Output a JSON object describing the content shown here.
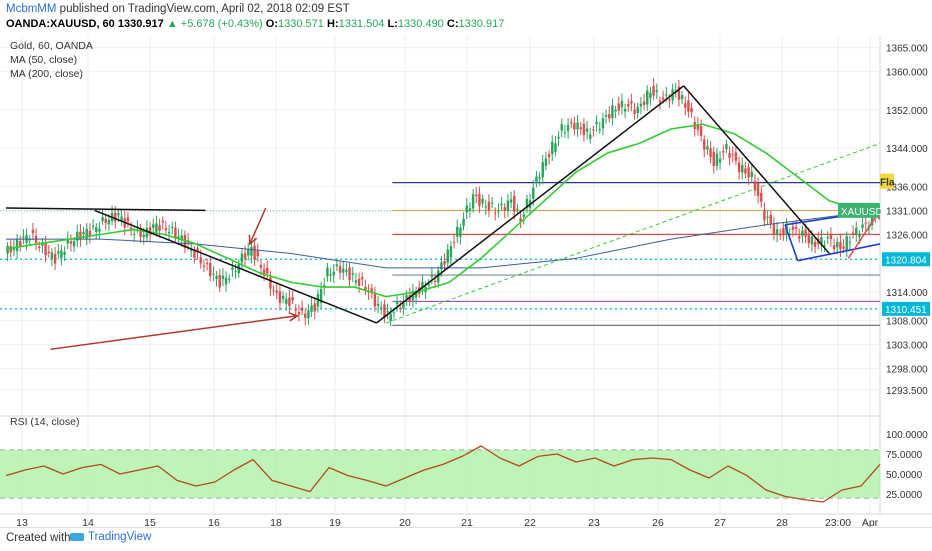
{
  "header": {
    "author": "McbmMM",
    "published_text": "published on TradingView.com, April 02, 2018 02:09 EST",
    "symbol": "OANDA:XAUUSD, 60",
    "last": "1330.917",
    "change": "+5.678 (+0.43%)",
    "open_label": "O:",
    "open": "1330.571",
    "high_label": "H:",
    "high": "1331.504",
    "low_label": "L:",
    "low": "1330.490",
    "close_label": "C:",
    "close": "1330.917"
  },
  "legend": {
    "title": "Gold, 60, OANDA",
    "ma50": "MA (50, close)",
    "ma200": "MA (200, close)",
    "rsi": "RSI (14, close)"
  },
  "footer": {
    "created_with": "Created with",
    "brand": "TradingView"
  },
  "colors": {
    "up": "#26a65b",
    "down": "#e04b4b",
    "ma50": "#33cc33",
    "ma200": "#3d5a99",
    "rsi": "#b5491a",
    "rsi_band": "#a8f0a0",
    "cyan_level": "#00b7d9"
  },
  "chart_data": [
    {
      "type": "candlestick",
      "title": "Gold, 60, OANDA",
      "symbol": "XAUUSD",
      "price_scale": {
        "ticks": [
          "1365.000",
          "1360.000",
          "1352.000",
          "1344.000",
          "1336.000",
          "1331.000",
          "1326.000",
          "1320.804",
          "1314.000",
          "1310.451",
          "1308.000",
          "1303.000",
          "1298.000",
          "1293.500"
        ],
        "tick_values": [
          1365,
          1360,
          1352,
          1344,
          1336,
          1331,
          1326,
          1320.804,
          1314,
          1310.451,
          1308,
          1303,
          1298,
          1293.5
        ],
        "highlighted": [
          {
            "label": "1320.804",
            "value": 1320.804
          },
          {
            "label": "1310.451",
            "value": 1310.451
          }
        ],
        "last_price_tag": {
          "label": "XAUUSD",
          "value": 1330.917
        },
        "flag_tag": "Fla"
      },
      "x_ticks": [
        "13",
        "14",
        "15",
        "16",
        "18",
        "19",
        "20",
        "21",
        "22",
        "23",
        "26",
        "27",
        "28",
        "23:00",
        "Apr"
      ],
      "price_path": [
        [
          0,
          1322
        ],
        [
          4,
          1324
        ],
        [
          8,
          1326
        ],
        [
          12,
          1323
        ],
        [
          16,
          1321
        ],
        [
          20,
          1324
        ],
        [
          24,
          1326
        ],
        [
          28,
          1327
        ],
        [
          32,
          1329
        ],
        [
          36,
          1330
        ],
        [
          40,
          1327
        ],
        [
          44,
          1326
        ],
        [
          48,
          1328
        ],
        [
          52,
          1327
        ],
        [
          56,
          1325
        ],
        [
          60,
          1322
        ],
        [
          64,
          1319
        ],
        [
          68,
          1316
        ],
        [
          72,
          1318
        ],
        [
          76,
          1322
        ],
        [
          78,
          1323
        ],
        [
          82,
          1318
        ],
        [
          86,
          1313
        ],
        [
          90,
          1312
        ],
        [
          94,
          1309
        ],
        [
          98,
          1311
        ],
        [
          102,
          1318
        ],
        [
          106,
          1319
        ],
        [
          110,
          1317
        ],
        [
          114,
          1315
        ],
        [
          118,
          1311
        ],
        [
          121,
          1309
        ],
        [
          124,
          1311
        ],
        [
          128,
          1313
        ],
        [
          132,
          1315
        ],
        [
          136,
          1317
        ],
        [
          140,
          1322
        ],
        [
          144,
          1328
        ],
        [
          148,
          1334
        ],
        [
          152,
          1332
        ],
        [
          156,
          1331
        ],
        [
          160,
          1333
        ],
        [
          163,
          1329
        ],
        [
          166,
          1334
        ],
        [
          169,
          1339
        ],
        [
          172,
          1343
        ],
        [
          176,
          1348
        ],
        [
          180,
          1349
        ],
        [
          184,
          1347
        ],
        [
          188,
          1349
        ],
        [
          192,
          1352
        ],
        [
          196,
          1353
        ],
        [
          200,
          1352
        ],
        [
          204,
          1356
        ],
        [
          208,
          1354
        ],
        [
          212,
          1356
        ],
        [
          216,
          1352
        ],
        [
          220,
          1346
        ],
        [
          224,
          1341
        ],
        [
          228,
          1344
        ],
        [
          232,
          1340
        ],
        [
          236,
          1338
        ],
        [
          240,
          1330
        ],
        [
          244,
          1326
        ],
        [
          248,
          1327
        ],
        [
          252,
          1326
        ],
        [
          256,
          1324
        ],
        [
          260,
          1325
        ],
        [
          264,
          1323
        ],
        [
          268,
          1326
        ],
        [
          272,
          1328
        ],
        [
          276,
          1331
        ]
      ],
      "series": [
        {
          "name": "MA (50, close)",
          "values": [
            [
              0,
              1323
            ],
            [
              10,
              1324
            ],
            [
              20,
              1325
            ],
            [
              30,
              1326
            ],
            [
              40,
              1327
            ],
            [
              50,
              1326
            ],
            [
              60,
              1324
            ],
            [
              70,
              1321
            ],
            [
              80,
              1318
            ],
            [
              90,
              1316
            ],
            [
              100,
              1315
            ],
            [
              110,
              1315
            ],
            [
              120,
              1313
            ],
            [
              130,
              1314
            ],
            [
              140,
              1316
            ],
            [
              150,
              1321
            ],
            [
              160,
              1327
            ],
            [
              170,
              1333
            ],
            [
              180,
              1339
            ],
            [
              190,
              1343
            ],
            [
              200,
              1345
            ],
            [
              210,
              1348
            ],
            [
              220,
              1349
            ],
            [
              230,
              1347
            ],
            [
              240,
              1343
            ],
            [
              250,
              1338
            ],
            [
              260,
              1333
            ],
            [
              270,
              1331
            ],
            [
              276,
              1330
            ]
          ]
        },
        {
          "name": "MA (200, close)",
          "values": [
            [
              0,
              1325
            ],
            [
              30,
              1325
            ],
            [
              60,
              1324
            ],
            [
              90,
              1322
            ],
            [
              120,
              1319
            ],
            [
              150,
              1319
            ],
            [
              180,
              1321
            ],
            [
              210,
              1325
            ],
            [
              240,
              1328
            ],
            [
              276,
              1331
            ]
          ]
        },
        {
          "name": "RSI (14, close)",
          "values": [
            [
              0,
              48
            ],
            [
              6,
              55
            ],
            [
              12,
              60
            ],
            [
              18,
              50
            ],
            [
              24,
              58
            ],
            [
              30,
              62
            ],
            [
              36,
              50
            ],
            [
              42,
              55
            ],
            [
              48,
              60
            ],
            [
              54,
              42
            ],
            [
              60,
              35
            ],
            [
              66,
              40
            ],
            [
              72,
              55
            ],
            [
              78,
              68
            ],
            [
              84,
              42
            ],
            [
              90,
              35
            ],
            [
              96,
              28
            ],
            [
              102,
              58
            ],
            [
              108,
              48
            ],
            [
              114,
              42
            ],
            [
              120,
              35
            ],
            [
              126,
              45
            ],
            [
              132,
              55
            ],
            [
              138,
              62
            ],
            [
              144,
              72
            ],
            [
              150,
              85
            ],
            [
              156,
              70
            ],
            [
              162,
              60
            ],
            [
              168,
              72
            ],
            [
              174,
              75
            ],
            [
              180,
              65
            ],
            [
              186,
              70
            ],
            [
              192,
              60
            ],
            [
              198,
              68
            ],
            [
              204,
              70
            ],
            [
              210,
              68
            ],
            [
              216,
              55
            ],
            [
              222,
              45
            ],
            [
              228,
              60
            ],
            [
              234,
              48
            ],
            [
              240,
              30
            ],
            [
              246,
              22
            ],
            [
              252,
              18
            ],
            [
              258,
              15
            ],
            [
              264,
              30
            ],
            [
              270,
              35
            ],
            [
              276,
              62
            ]
          ]
        }
      ],
      "rsi_scale": {
        "ticks": [
          "100.0000",
          "75.0000",
          "50.0000",
          "25.0000"
        ],
        "tick_values": [
          100,
          75,
          50,
          25
        ],
        "bands": [
          20,
          80
        ]
      }
    }
  ]
}
